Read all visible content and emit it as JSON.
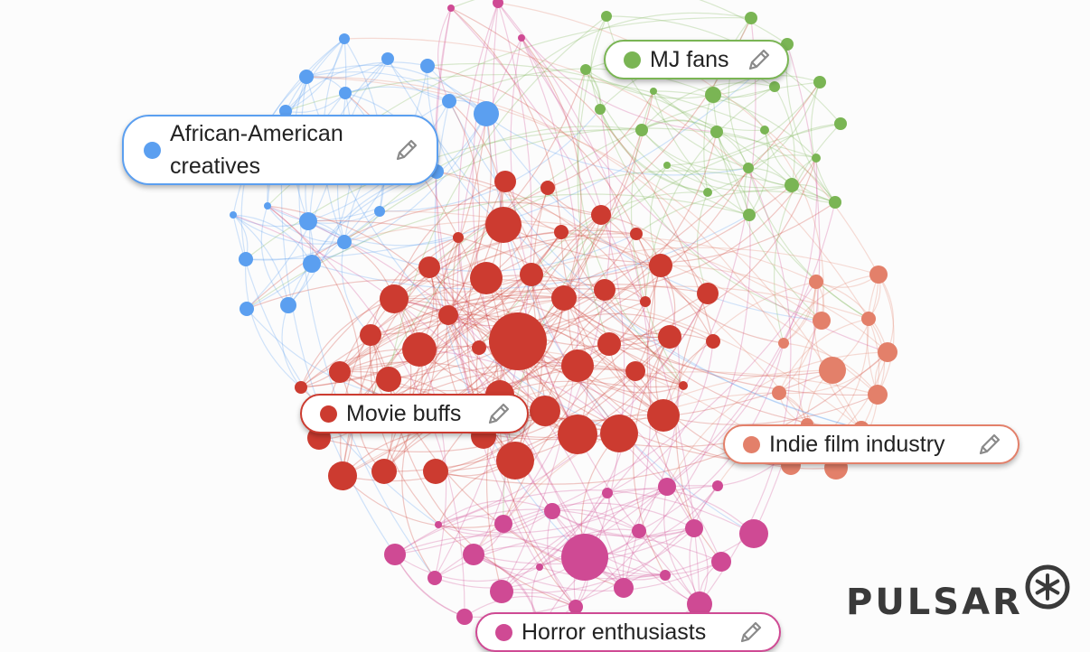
{
  "clusters": [
    {
      "id": "african-american-creatives",
      "label": "African-American creatives",
      "color": "#5b9ff0"
    },
    {
      "id": "mj-fans",
      "label": "MJ fans",
      "color": "#7ab554"
    },
    {
      "id": "movie-buffs",
      "label": "Movie buffs",
      "color": "#cc3b30"
    },
    {
      "id": "indie-film-industry",
      "label": "Indie film industry",
      "color": "#e3806a"
    },
    {
      "id": "horror-enthusiasts",
      "label": "Horror enthusiasts",
      "color": "#cf4a94"
    }
  ],
  "icons": {
    "edit": "pencil-icon",
    "logo_mark": "asterisk-circle-icon"
  },
  "brand": {
    "name": "PULSAR",
    "color": "#3a3a3a"
  }
}
